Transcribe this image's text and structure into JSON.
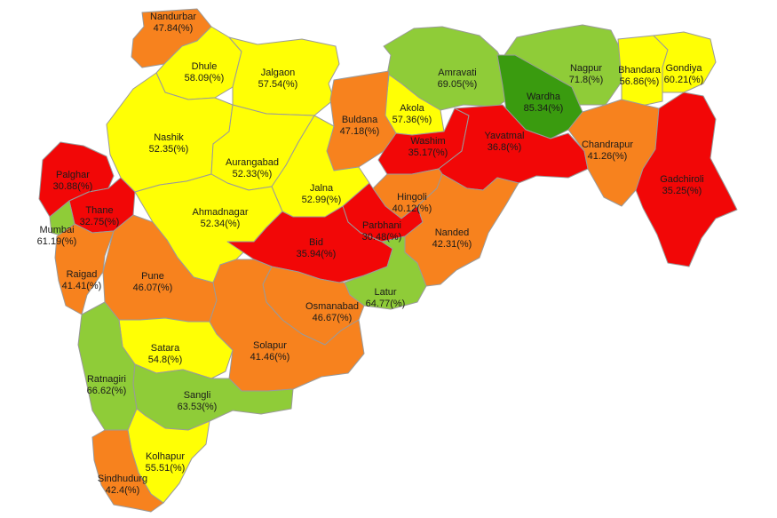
{
  "legend_colors": {
    "dark_green": "#3a9b0f",
    "green": "#8fcc38",
    "yellow": "#ffff05",
    "orange": "#f7821e",
    "red": "#f20707"
  },
  "districts": [
    {
      "name": "Nandurbar",
      "value": "47.84(%)",
      "color": "#f7821e"
    },
    {
      "name": "Dhule",
      "value": "58.09(%)",
      "color": "#ffff05"
    },
    {
      "name": "Jalgaon",
      "value": "57.54(%)",
      "color": "#ffff05"
    },
    {
      "name": "Amravati",
      "value": "69.05(%)",
      "color": "#8fcc38"
    },
    {
      "name": "Nagpur",
      "value": "71.8(%)",
      "color": "#8fcc38"
    },
    {
      "name": "Bhandara",
      "value": "56.86(%)",
      "color": "#ffff05"
    },
    {
      "name": "Gondiya",
      "value": "60.21(%)",
      "color": "#ffff05"
    },
    {
      "name": "Wardha",
      "value": "85.34(%)",
      "color": "#3a9b0f"
    },
    {
      "name": "Akola",
      "value": "57.36(%)",
      "color": "#ffff05"
    },
    {
      "name": "Buldana",
      "value": "47.18(%)",
      "color": "#f7821e"
    },
    {
      "name": "Washim",
      "value": "35.17(%)",
      "color": "#f20707"
    },
    {
      "name": "Yavatmal",
      "value": "36.8(%)",
      "color": "#f20707"
    },
    {
      "name": "Chandrapur",
      "value": "41.26(%)",
      "color": "#f7821e"
    },
    {
      "name": "Gadchiroli",
      "value": "35.25(%)",
      "color": "#f20707"
    },
    {
      "name": "Nashik",
      "value": "52.35(%)",
      "color": "#ffff05"
    },
    {
      "name": "Aurangabad",
      "value": "52.33(%)",
      "color": "#ffff05"
    },
    {
      "name": "Jalna",
      "value": "52.99(%)",
      "color": "#ffff05"
    },
    {
      "name": "Hingoli",
      "value": "40.12(%)",
      "color": "#f7821e"
    },
    {
      "name": "Palghar",
      "value": "30.88(%)",
      "color": "#f20707"
    },
    {
      "name": "Thane",
      "value": "32.75(%)",
      "color": "#f20707"
    },
    {
      "name": "Ahmadnagar",
      "value": "52.34(%)",
      "color": "#ffff05"
    },
    {
      "name": "Parbhani",
      "value": "30.48(%)",
      "color": "#f20707"
    },
    {
      "name": "Nanded",
      "value": "42.31(%)",
      "color": "#f7821e"
    },
    {
      "name": "Mumbai",
      "value": "61.19(%)",
      "color": "#8fcc38"
    },
    {
      "name": "Bid",
      "value": "35.94(%)",
      "color": "#f20707"
    },
    {
      "name": "Raigad",
      "value": "41.41(%)",
      "color": "#f7821e"
    },
    {
      "name": "Pune",
      "value": "46.07(%)",
      "color": "#f7821e"
    },
    {
      "name": "Latur",
      "value": "64.77(%)",
      "color": "#8fcc38"
    },
    {
      "name": "Osmanabad",
      "value": "46.67(%)",
      "color": "#f7821e"
    },
    {
      "name": "Satara",
      "value": "54.8(%)",
      "color": "#ffff05"
    },
    {
      "name": "Solapur",
      "value": "41.46(%)",
      "color": "#f7821e"
    },
    {
      "name": "Ratnagiri",
      "value": "66.62(%)",
      "color": "#8fcc38"
    },
    {
      "name": "Sangli",
      "value": "63.53(%)",
      "color": "#8fcc38"
    },
    {
      "name": "Kolhapur",
      "value": "55.51(%)",
      "color": "#ffff05"
    },
    {
      "name": "Sindhudurg",
      "value": "42.4(%)",
      "color": "#f7821e"
    }
  ]
}
